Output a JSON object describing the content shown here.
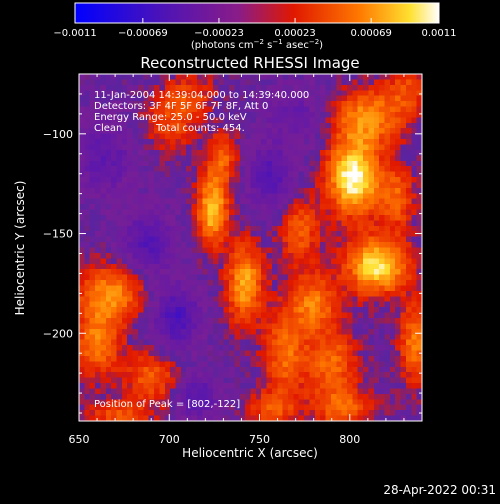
{
  "chart_data": {
    "type": "heatmap",
    "title": "Reconstructed RHESSI Image",
    "xlabel": "Heliocentric X (arcsec)",
    "ylabel": "Heliocentric Y (arcsec)",
    "xlim": [
      650,
      840
    ],
    "ylim": [
      -244,
      -70
    ],
    "x_ticks": [
      {
        "value": 650,
        "label": "650"
      },
      {
        "value": 700,
        "label": "700"
      },
      {
        "value": 750,
        "label": "750"
      },
      {
        "value": 800,
        "label": "800"
      }
    ],
    "y_ticks": [
      {
        "value": -100,
        "label": "−100"
      },
      {
        "value": -150,
        "label": "−150"
      },
      {
        "value": -200,
        "label": "−200"
      }
    ],
    "colorbar": {
      "range": [
        -0.0011,
        0.0011
      ],
      "colormap": "blue-purple-red-yellow-white",
      "ticks": [
        {
          "value": -0.0011,
          "label": "−0.0011"
        },
        {
          "value": -0.00069,
          "label": "−0.00069"
        },
        {
          "value": -0.00023,
          "label": "−0.00023"
        },
        {
          "value": 0.00023,
          "label": "0.00023"
        },
        {
          "value": 0.00069,
          "label": "0.00069"
        },
        {
          "value": 0.0011,
          "label": "0.0011"
        }
      ],
      "units_prefix": "(photons cm",
      "units_exp1": "−2",
      "units_mid1": " s",
      "units_exp2": "−1",
      "units_mid2": " asec",
      "units_exp3": "−2",
      "units_suffix": ")"
    },
    "annotations": {
      "time_range": "11-Jan-2004 14:39:04.000 to 14:39:40.000",
      "detectors": "Detectors: 3F 4F 5F 6F 7F 8F, Att 0",
      "energy_range": "Energy Range: 25.0 - 50.0 keV",
      "method": "Clean",
      "total_counts": "Total counts: 454.",
      "peak_position": "Position of Peak = [802,-122]"
    },
    "sources": [
      {
        "x": 802,
        "y": -122,
        "amp": 1.0,
        "sx": 10,
        "sy": 13
      },
      {
        "x": 815,
        "y": -166,
        "amp": 0.9,
        "sx": 12,
        "sy": 10
      },
      {
        "x": 810,
        "y": -92,
        "amp": 0.6,
        "sx": 14,
        "sy": 10
      },
      {
        "x": 772,
        "y": -148,
        "amp": 0.45,
        "sx": 8,
        "sy": 12
      },
      {
        "x": 780,
        "y": -185,
        "amp": 0.55,
        "sx": 9,
        "sy": 10
      },
      {
        "x": 790,
        "y": -215,
        "amp": 0.5,
        "sx": 10,
        "sy": 12
      },
      {
        "x": 836,
        "y": -205,
        "amp": 0.55,
        "sx": 6,
        "sy": 14
      },
      {
        "x": 826,
        "y": -132,
        "amp": 0.45,
        "sx": 7,
        "sy": 11
      },
      {
        "x": 796,
        "y": -238,
        "amp": 0.45,
        "sx": 12,
        "sy": 7
      },
      {
        "x": 724,
        "y": -138,
        "amp": 0.8,
        "sx": 6,
        "sy": 12
      },
      {
        "x": 742,
        "y": -175,
        "amp": 0.7,
        "sx": 7,
        "sy": 14
      },
      {
        "x": 730,
        "y": -112,
        "amp": 0.45,
        "sx": 6,
        "sy": 9
      },
      {
        "x": 764,
        "y": -210,
        "amp": 0.5,
        "sx": 8,
        "sy": 16
      },
      {
        "x": 756,
        "y": -238,
        "amp": 0.4,
        "sx": 9,
        "sy": 6
      },
      {
        "x": 668,
        "y": -180,
        "amp": 0.6,
        "sx": 13,
        "sy": 10
      },
      {
        "x": 660,
        "y": -205,
        "amp": 0.55,
        "sx": 9,
        "sy": 12
      },
      {
        "x": 690,
        "y": -222,
        "amp": 0.45,
        "sx": 10,
        "sy": 9
      },
      {
        "x": 672,
        "y": -242,
        "amp": 0.4,
        "sx": 12,
        "sy": 6
      },
      {
        "x": 700,
        "y": -95,
        "amp": 0.35,
        "sx": 10,
        "sy": 10
      },
      {
        "x": 712,
        "y": -80,
        "amp": 0.3,
        "sx": 10,
        "sy": 8
      },
      {
        "x": 832,
        "y": -78,
        "amp": 0.35,
        "sx": 9,
        "sy": 8
      },
      {
        "x": 704,
        "y": -192,
        "amp": -0.55,
        "sx": 9,
        "sy": 11
      },
      {
        "x": 688,
        "y": -155,
        "amp": -0.45,
        "sx": 10,
        "sy": 12
      },
      {
        "x": 756,
        "y": -122,
        "amp": -0.45,
        "sx": 10,
        "sy": 12
      },
      {
        "x": 664,
        "y": -112,
        "amp": -0.35,
        "sx": 12,
        "sy": 14
      },
      {
        "x": 716,
        "y": -232,
        "amp": -0.45,
        "sx": 8,
        "sy": 8
      },
      {
        "x": 770,
        "y": -90,
        "amp": -0.3,
        "sx": 12,
        "sy": 10
      }
    ],
    "timestamp": "28-Apr-2022 00:31"
  }
}
